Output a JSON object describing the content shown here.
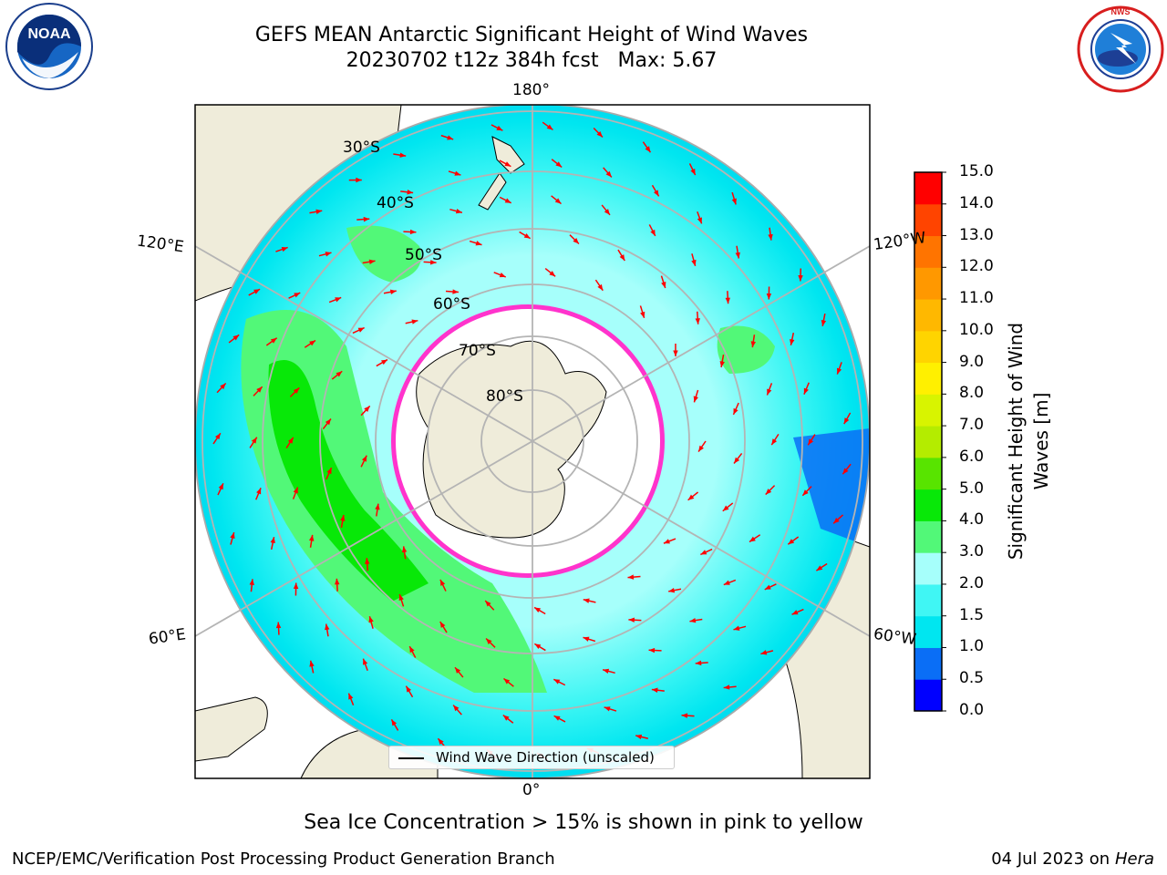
{
  "title": {
    "line1": "GEFS MEAN Antarctic Significant Height of Wind Waves",
    "line2": "20230702 t12z 384h fcst   Max: 5.67"
  },
  "logos": {
    "left": {
      "icon": "noaa-logo",
      "text": "NOAA"
    },
    "right": {
      "icon": "national-weather-service-logo",
      "text": "NATIONAL WEATHER SERVICE"
    }
  },
  "map": {
    "projection": "south-polar-stereographic",
    "longitude_labels": {
      "top": "180°",
      "bottom": "0°",
      "upper_left": "120°E",
      "upper_right": "120°W",
      "lower_left": "60°E",
      "lower_right": "60°W"
    },
    "latitude_labels": [
      "30°S",
      "40°S",
      "50°S",
      "60°S",
      "70°S",
      "80°S"
    ],
    "colors": {
      "land": "#efecda",
      "ice_edge": "#ff33cc",
      "arrow": "#ff0000",
      "grid": "#b4b4b4"
    },
    "legend": {
      "label": "Wind Wave Direction (unscaled)"
    }
  },
  "colorbar": {
    "label": "Significant Height of Wind Waves [m]",
    "ticks": [
      "0.0",
      "0.5",
      "1.0",
      "1.5",
      "2.0",
      "3.0",
      "4.0",
      "5.0",
      "6.0",
      "7.0",
      "8.0",
      "9.0",
      "10.0",
      "11.0",
      "12.0",
      "13.0",
      "14.0",
      "15.0"
    ],
    "colors": [
      "#0000ff",
      "#0a6ef6",
      "#00e6f0",
      "#40f6f4",
      "#a6fffb",
      "#52f878",
      "#08e808",
      "#58e400",
      "#b4ec00",
      "#d8f400",
      "#fff000",
      "#ffd400",
      "#ffb800",
      "#ff9800",
      "#ff7400",
      "#ff4400",
      "#ff0000"
    ]
  },
  "footer": {
    "note": "Sea Ice Concentration > 15% is shown in pink to yellow",
    "branch": "NCEP/EMC/Verification Post Processing Product Generation Branch",
    "date_text": "04 Jul 2023 on ",
    "machine": "Hera"
  }
}
